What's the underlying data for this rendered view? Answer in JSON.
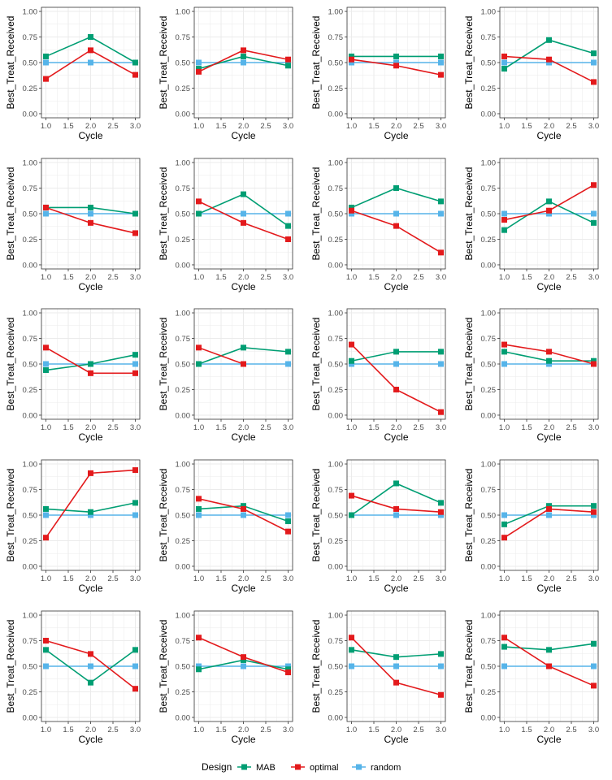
{
  "legend": {
    "title": "Design",
    "items": [
      {
        "label": "MAB",
        "color": "#009E73"
      },
      {
        "label": "optimal",
        "color": "#E31A1C"
      },
      {
        "label": "random",
        "color": "#56B4E9"
      }
    ]
  },
  "panel_style": {
    "ylabel": "Best_Treat_Received",
    "xlabel": "Cycle",
    "ylim": [
      0,
      1
    ],
    "yticks": [
      "0.00",
      "0.25",
      "0.50",
      "0.75",
      "1.00"
    ],
    "yticks_values": [
      0,
      0.25,
      0.5,
      0.75,
      1
    ],
    "grid": true
  },
  "chart_data": [
    {
      "type": "line",
      "x": [
        1,
        2,
        3
      ],
      "xticks": [
        "1.0",
        "1.5",
        "2.0",
        "2.5",
        "3.0"
      ],
      "series": [
        {
          "name": "MAB",
          "values": [
            0.56,
            0.75,
            0.5
          ]
        },
        {
          "name": "optimal",
          "values": [
            0.34,
            0.62,
            0.38
          ]
        },
        {
          "name": "random",
          "values": [
            0.5,
            0.5,
            0.5
          ]
        }
      ]
    },
    {
      "type": "line",
      "x": [
        1,
        2,
        3
      ],
      "xticks": [
        "1.0",
        "1.5",
        "2.0",
        "2.5",
        "3.0"
      ],
      "series": [
        {
          "name": "MAB",
          "values": [
            0.44,
            0.56,
            0.47
          ]
        },
        {
          "name": "optimal",
          "values": [
            0.41,
            0.62,
            0.53
          ]
        },
        {
          "name": "random",
          "values": [
            0.5,
            0.5,
            0.5
          ]
        }
      ]
    },
    {
      "type": "line",
      "x": [
        1,
        2,
        3
      ],
      "xticks": [
        "1.0",
        "1.5",
        "2.0",
        "2.5",
        "3.0"
      ],
      "series": [
        {
          "name": "MAB",
          "values": [
            0.56,
            0.56,
            0.56
          ]
        },
        {
          "name": "optimal",
          "values": [
            0.53,
            0.47,
            0.38
          ]
        },
        {
          "name": "random",
          "values": [
            0.5,
            0.5,
            0.5
          ]
        }
      ]
    },
    {
      "type": "line",
      "x": [
        1,
        2,
        3
      ],
      "xticks": [
        "1.0",
        "1.5",
        "2.0",
        "2.5",
        "3.0"
      ],
      "series": [
        {
          "name": "MAB",
          "values": [
            0.44,
            0.72,
            0.59
          ]
        },
        {
          "name": "optimal",
          "values": [
            0.56,
            0.53,
            0.31
          ]
        },
        {
          "name": "random",
          "values": [
            0.5,
            0.5,
            0.5
          ]
        }
      ]
    },
    {
      "type": "line",
      "x": [
        1,
        2,
        3
      ],
      "xticks": [
        "1.0",
        "1.5",
        "2.0",
        "2.5",
        "3.0"
      ],
      "series": [
        {
          "name": "MAB",
          "values": [
            0.56,
            0.56,
            0.5
          ]
        },
        {
          "name": "optimal",
          "values": [
            0.56,
            0.41,
            0.31
          ]
        },
        {
          "name": "random",
          "values": [
            0.5,
            0.5,
            0.5
          ]
        }
      ]
    },
    {
      "type": "line",
      "x": [
        1,
        2,
        3
      ],
      "xticks": [
        "1.0",
        "1.5",
        "2.0",
        "2.5",
        "3.0"
      ],
      "series": [
        {
          "name": "MAB",
          "values": [
            0.5,
            0.69,
            0.38
          ]
        },
        {
          "name": "optimal",
          "values": [
            0.62,
            0.41,
            0.25
          ]
        },
        {
          "name": "random",
          "values": [
            0.5,
            0.5,
            0.5
          ]
        }
      ]
    },
    {
      "type": "line",
      "x": [
        1,
        2,
        3
      ],
      "xticks": [
        "1.0",
        "1.5",
        "2.0",
        "2.5",
        "3.0"
      ],
      "series": [
        {
          "name": "MAB",
          "values": [
            0.56,
            0.75,
            0.62
          ]
        },
        {
          "name": "optimal",
          "values": [
            0.53,
            0.38,
            0.12
          ]
        },
        {
          "name": "random",
          "values": [
            0.5,
            0.5,
            0.5
          ]
        }
      ]
    },
    {
      "type": "line",
      "x": [
        1,
        2,
        3
      ],
      "xticks": [
        "1.0",
        "1.5",
        "2.0",
        "2.5",
        "3.0"
      ],
      "series": [
        {
          "name": "MAB",
          "values": [
            0.34,
            0.62,
            0.41
          ]
        },
        {
          "name": "optimal",
          "values": [
            0.44,
            0.53,
            0.78
          ]
        },
        {
          "name": "random",
          "values": [
            0.5,
            0.5,
            0.5
          ]
        }
      ]
    },
    {
      "type": "line",
      "x": [
        1,
        2,
        3
      ],
      "xticks": [
        "1.0",
        "1.5",
        "2.0",
        "2.5",
        "3.0"
      ],
      "series": [
        {
          "name": "MAB",
          "values": [
            0.44,
            0.5,
            0.59
          ]
        },
        {
          "name": "optimal",
          "values": [
            0.66,
            0.41,
            0.41
          ]
        },
        {
          "name": "random",
          "values": [
            0.5,
            0.5,
            0.5
          ]
        }
      ]
    },
    {
      "type": "line",
      "x": [
        1,
        2,
        3
      ],
      "xticks": [
        "1.0",
        "1.5",
        "2.0",
        "2.5",
        "3.0"
      ],
      "series": [
        {
          "name": "MAB",
          "values": [
            0.5,
            0.66,
            0.62
          ]
        },
        {
          "name": "optimal",
          "values": [
            0.66,
            0.5,
            null
          ]
        },
        {
          "name": "random",
          "values": [
            0.5,
            0.5,
            0.5
          ]
        }
      ]
    },
    {
      "type": "line",
      "x": [
        1,
        2,
        3
      ],
      "xticks": [
        "1.0",
        "1.5",
        "2.0",
        "2.5",
        "3.0"
      ],
      "series": [
        {
          "name": "MAB",
          "values": [
            0.53,
            0.62,
            0.62
          ]
        },
        {
          "name": "optimal",
          "values": [
            0.69,
            0.25,
            0.03
          ]
        },
        {
          "name": "random",
          "values": [
            0.5,
            0.5,
            0.5
          ]
        }
      ]
    },
    {
      "type": "line",
      "x": [
        1,
        2,
        3
      ],
      "xticks": [
        "1.0",
        "1.5",
        "2.0",
        "2.5",
        "3.0"
      ],
      "series": [
        {
          "name": "MAB",
          "values": [
            0.62,
            0.53,
            0.53
          ]
        },
        {
          "name": "optimal",
          "values": [
            0.69,
            0.62,
            0.5
          ]
        },
        {
          "name": "random",
          "values": [
            0.5,
            0.5,
            0.5
          ]
        }
      ]
    },
    {
      "type": "line",
      "x": [
        1,
        2,
        3
      ],
      "xticks": [
        "1.0",
        "1.5",
        "2.0",
        "2.5",
        "3.0"
      ],
      "series": [
        {
          "name": "MAB",
          "values": [
            0.56,
            0.53,
            0.62
          ]
        },
        {
          "name": "optimal",
          "values": [
            0.28,
            0.91,
            0.94
          ]
        },
        {
          "name": "random",
          "values": [
            0.5,
            0.5,
            0.5
          ]
        }
      ]
    },
    {
      "type": "line",
      "x": [
        1,
        2,
        3
      ],
      "xticks": [
        "1.0",
        "1.5",
        "2.0",
        "2.5",
        "3.0"
      ],
      "series": [
        {
          "name": "MAB",
          "values": [
            0.56,
            0.59,
            0.44
          ]
        },
        {
          "name": "optimal",
          "values": [
            0.66,
            0.56,
            0.34
          ]
        },
        {
          "name": "random",
          "values": [
            0.5,
            0.5,
            0.5
          ]
        }
      ]
    },
    {
      "type": "line",
      "x": [
        1,
        2,
        3
      ],
      "xticks": [
        "1.0",
        "1.5",
        "2.0",
        "2.5",
        "3.0"
      ],
      "series": [
        {
          "name": "MAB",
          "values": [
            0.5,
            0.81,
            0.62
          ]
        },
        {
          "name": "optimal",
          "values": [
            0.69,
            0.56,
            0.53
          ]
        },
        {
          "name": "random",
          "values": [
            0.5,
            0.5,
            0.5
          ]
        }
      ]
    },
    {
      "type": "line",
      "x": [
        1,
        2,
        3
      ],
      "xticks": [
        "1.0",
        "1.5",
        "2.0",
        "2.5",
        "3.0"
      ],
      "series": [
        {
          "name": "MAB",
          "values": [
            0.41,
            0.59,
            0.59
          ]
        },
        {
          "name": "optimal",
          "values": [
            0.28,
            0.56,
            0.53
          ]
        },
        {
          "name": "random",
          "values": [
            0.5,
            0.5,
            0.5
          ]
        }
      ]
    },
    {
      "type": "line",
      "x": [
        1,
        2,
        3
      ],
      "xticks": [
        "1.0",
        "1.5",
        "2.0",
        "2.5",
        "3.0"
      ],
      "series": [
        {
          "name": "MAB",
          "values": [
            0.66,
            0.34,
            0.66
          ]
        },
        {
          "name": "optimal",
          "values": [
            0.75,
            0.62,
            0.28
          ]
        },
        {
          "name": "random",
          "values": [
            0.5,
            0.5,
            0.5
          ]
        }
      ]
    },
    {
      "type": "line",
      "x": [
        1,
        2,
        3
      ],
      "xticks": [
        "1.0",
        "1.5",
        "2.0",
        "2.5",
        "3.0"
      ],
      "series": [
        {
          "name": "MAB",
          "values": [
            0.47,
            0.56,
            0.47
          ]
        },
        {
          "name": "optimal",
          "values": [
            0.78,
            0.59,
            0.44
          ]
        },
        {
          "name": "random",
          "values": [
            0.5,
            0.5,
            0.5
          ]
        }
      ]
    },
    {
      "type": "line",
      "x": [
        1,
        2,
        3
      ],
      "xticks": [
        "1.0",
        "1.5",
        "2.0",
        "2.5",
        "3.0"
      ],
      "series": [
        {
          "name": "MAB",
          "values": [
            0.66,
            0.59,
            0.62
          ]
        },
        {
          "name": "optimal",
          "values": [
            0.78,
            0.34,
            0.22
          ]
        },
        {
          "name": "random",
          "values": [
            0.5,
            0.5,
            0.5
          ]
        }
      ]
    },
    {
      "type": "line",
      "x": [
        1,
        2,
        3
      ],
      "xticks": [
        "1.0",
        "1.5",
        "2.0",
        "2.5",
        "3.0"
      ],
      "series": [
        {
          "name": "MAB",
          "values": [
            0.69,
            0.66,
            0.72
          ]
        },
        {
          "name": "optimal",
          "values": [
            0.78,
            0.5,
            0.31
          ]
        },
        {
          "name": "random",
          "values": [
            0.5,
            0.5,
            0.5
          ]
        }
      ]
    }
  ]
}
